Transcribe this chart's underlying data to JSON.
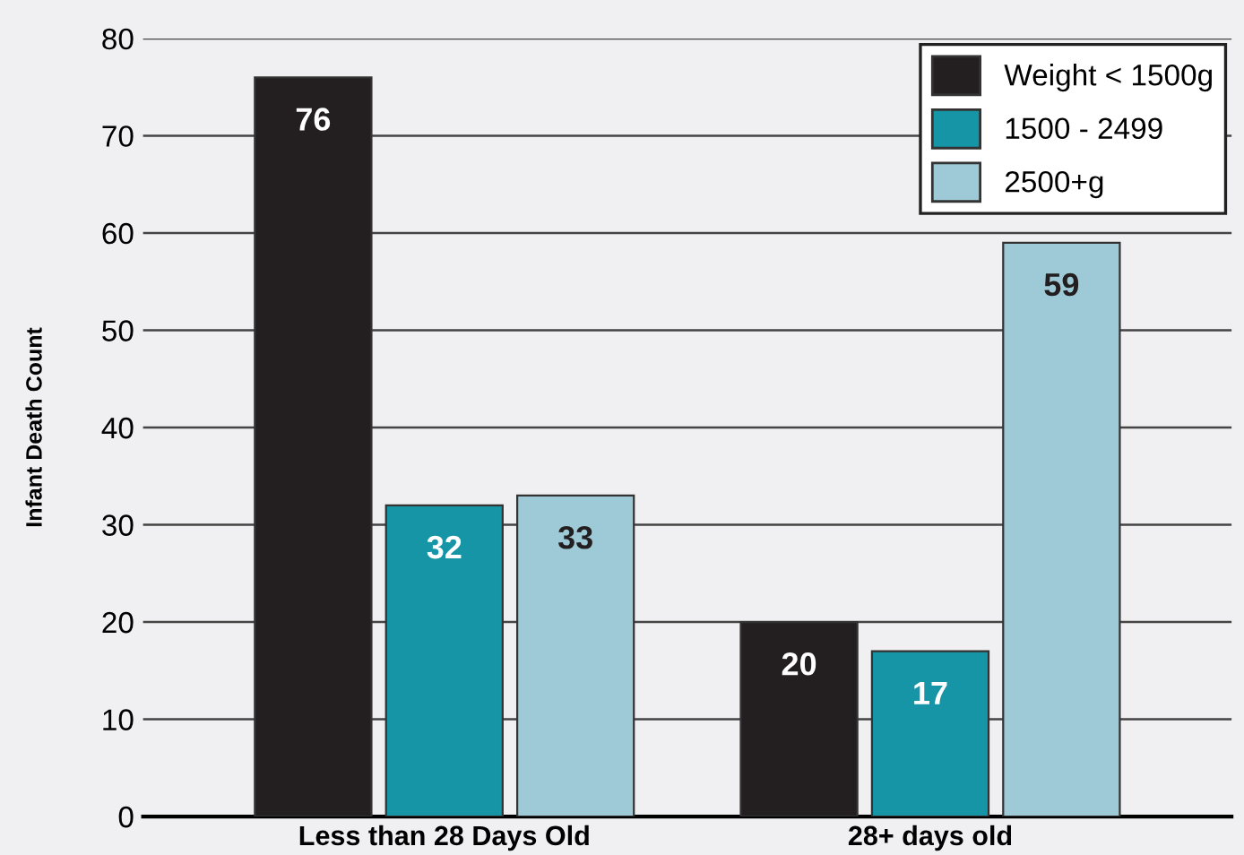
{
  "chart_data": {
    "type": "bar",
    "ylabel": "Infant Death Count",
    "categories": [
      "Less than 28 Days Old",
      "28+ days old"
    ],
    "series": [
      {
        "name": "Weight < 1500g",
        "color": "#231f20",
        "values": [
          76,
          20
        ]
      },
      {
        "name": "1500 - 2499",
        "color": "#1595a6",
        "values": [
          32,
          17
        ]
      },
      {
        "name": "2500+g",
        "color": "#9dcad6",
        "values": [
          33,
          59
        ]
      }
    ],
    "ylim": [
      0,
      80
    ],
    "yticks": [
      0,
      10,
      20,
      30,
      40,
      50,
      60,
      70,
      80
    ],
    "grid": "y",
    "legend": "top right",
    "data_labels": true
  }
}
